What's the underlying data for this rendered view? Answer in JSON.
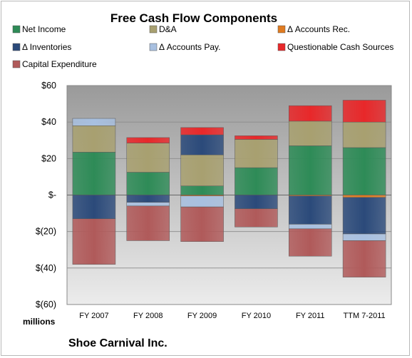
{
  "chart_data": {
    "type": "bar",
    "stacked": true,
    "title": "Free Cash Flow Components",
    "ylabel": "",
    "xlabel": "",
    "unit_label": "millions",
    "footer": "Shoe Carnival Inc.",
    "ylim": [
      -60,
      60
    ],
    "yticks": [
      60,
      40,
      20,
      0,
      -20,
      -40,
      -60
    ],
    "ytick_labels": [
      "$60",
      "$40",
      "$20",
      "$-",
      "$(20)",
      "$(40)",
      "$(60)"
    ],
    "grid": true,
    "legend_position": "top",
    "categories": [
      "FY 2007",
      "FY 2008",
      "FY 2009",
      "FY 2010",
      "FY 2011",
      "TTM 7-2011"
    ],
    "series": [
      {
        "name": "Net Income",
        "color": "#2e8b57",
        "values": [
          23.5,
          12.5,
          5,
          15,
          27,
          26
        ]
      },
      {
        "name": "D&A",
        "color": "#a8a070",
        "values": [
          14.5,
          16,
          17,
          15.5,
          13.5,
          14
        ]
      },
      {
        "name": "Δ Accounts Rec.",
        "color": "#e07b20",
        "values": [
          0,
          0,
          -0.5,
          0,
          -0.5,
          -1.3
        ]
      },
      {
        "name": "Δ Inventories",
        "color": "#2b4a7a",
        "values": [
          -13,
          -4,
          11,
          -7.5,
          -15.5,
          -20
        ]
      },
      {
        "name": "Δ Accounts Pay.",
        "color": "#a8c0e0",
        "values": [
          4,
          -2,
          -6,
          0,
          -2.5,
          -3.7
        ]
      },
      {
        "name": "Questionable Cash Sources",
        "color": "#e8282a",
        "values": [
          0,
          3,
          4,
          2,
          8.5,
          12
        ]
      },
      {
        "name": "Capital Expenditure",
        "color": "#b05a5a",
        "values": [
          -25,
          -19,
          -19,
          -10,
          -15,
          -20
        ]
      }
    ]
  }
}
